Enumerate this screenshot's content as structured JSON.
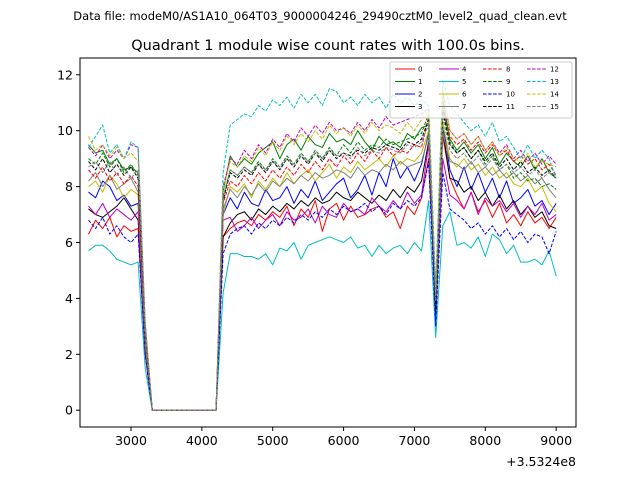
{
  "chart_data": {
    "type": "line",
    "suptitle": "Data file: modeM0/AS1A10_064T03_9000004246_29490cztM0_level2_quad_clean.evt",
    "title": "Quadrant 1 module wise count rates with 100.0s bins.",
    "xlabel": "",
    "ylabel": "",
    "x_offset_label": "+3.5324e8",
    "xlim": [
      2280,
      9280
    ],
    "ylim": [
      -0.6,
      12.6
    ],
    "xticks": [
      3000,
      4000,
      5000,
      6000,
      7000,
      8000,
      9000
    ],
    "xtick_labels": [
      "3000",
      "4000",
      "5000",
      "6000",
      "7000",
      "8000",
      "9000"
    ],
    "yticks": [
      0,
      2,
      4,
      6,
      8,
      10,
      12
    ],
    "ytick_labels": [
      "0",
      "2",
      "4",
      "6",
      "8",
      "10",
      "12"
    ],
    "grid": false,
    "legend_position": "top-right",
    "x": [
      2400,
      2500,
      2600,
      2700,
      2800,
      2900,
      3000,
      3100,
      3200,
      3300,
      3400,
      3500,
      3600,
      3700,
      3800,
      3900,
      4000,
      4100,
      4200,
      4300,
      4400,
      4500,
      4600,
      4700,
      4800,
      4900,
      5000,
      5100,
      5200,
      5300,
      5400,
      5500,
      5600,
      5700,
      5800,
      5900,
      6000,
      6100,
      6200,
      6300,
      6400,
      6500,
      6600,
      6700,
      6800,
      6900,
      7000,
      7100,
      7200,
      7300,
      7400,
      7500,
      7600,
      7700,
      7800,
      7900,
      8000,
      8100,
      8200,
      8300,
      8400,
      8500,
      8600,
      8700,
      8800,
      8900,
      9000
    ],
    "series": [
      {
        "name": "0",
        "color": "#ff0000",
        "dash": false,
        "values": [
          6.3,
          6.8,
          6.5,
          6.9,
          6.2,
          6.6,
          6.4,
          6.5,
          2.0,
          0,
          0,
          0,
          0,
          0,
          0,
          0,
          0,
          0,
          0,
          6.2,
          6.5,
          6.7,
          6.8,
          6.6,
          7.0,
          6.8,
          7.1,
          6.9,
          7.3,
          6.6,
          7.2,
          6.9,
          7.5,
          6.4,
          7.2,
          7.4,
          6.8,
          7.3,
          6.9,
          7.0,
          7.2,
          7.3,
          6.9,
          7.1,
          6.5,
          7.3,
          7.0,
          7.6,
          9.0,
          3.6,
          9.8,
          8.3,
          7.7,
          7.2,
          7.8,
          7.1,
          7.5,
          6.9,
          7.4,
          6.7,
          7.0,
          6.6,
          7.1,
          6.7,
          6.9,
          6.5,
          6.9
        ]
      },
      {
        "name": "1",
        "color": "#008000",
        "dash": false,
        "values": [
          9.5,
          9.2,
          9.3,
          8.8,
          9.0,
          8.6,
          8.7,
          8.5,
          3.0,
          0,
          0,
          0,
          0,
          0,
          0,
          0,
          0,
          0,
          0,
          7.8,
          9.1,
          8.7,
          9.0,
          8.8,
          9.2,
          9.4,
          9.6,
          9.0,
          9.5,
          9.7,
          9.3,
          9.8,
          9.5,
          9.4,
          9.9,
          9.6,
          9.7,
          9.5,
          10.0,
          9.6,
          9.3,
          9.8,
          9.5,
          9.6,
          9.4,
          9.9,
          9.7,
          10.1,
          10.2,
          3.5,
          10.8,
          9.7,
          9.3,
          9.6,
          9.2,
          9.5,
          9.0,
          9.4,
          8.8,
          9.2,
          8.9,
          8.7,
          9.1,
          8.6,
          9.0,
          8.5,
          8.3
        ]
      },
      {
        "name": "2",
        "color": "#0000ff",
        "dash": false,
        "values": [
          7.8,
          7.6,
          8.2,
          8.0,
          7.5,
          7.7,
          7.3,
          7.4,
          2.5,
          0,
          0,
          0,
          0,
          0,
          0,
          0,
          0,
          0,
          0,
          7.0,
          7.6,
          7.2,
          7.8,
          7.4,
          7.3,
          7.9,
          7.5,
          7.6,
          8.0,
          7.4,
          7.9,
          7.6,
          8.2,
          7.5,
          7.8,
          8.1,
          8.3,
          7.6,
          7.9,
          8.4,
          7.7,
          8.5,
          8.0,
          9.0,
          8.3,
          8.7,
          8.2,
          8.8,
          9.9,
          3.2,
          10.3,
          8.6,
          8.0,
          8.7,
          7.9,
          8.5,
          7.8,
          8.3,
          7.6,
          8.2,
          7.4,
          7.6,
          7.9,
          7.3,
          7.5,
          7.0,
          7.4
        ]
      },
      {
        "name": "3",
        "color": "#000000",
        "dash": false,
        "values": [
          7.2,
          7.0,
          6.9,
          7.1,
          7.3,
          7.6,
          7.2,
          6.8,
          2.2,
          0,
          0,
          0,
          0,
          0,
          0,
          0,
          0,
          0,
          0,
          6.2,
          6.7,
          7.0,
          7.1,
          6.8,
          7.2,
          7.0,
          7.3,
          7.1,
          7.4,
          7.2,
          7.5,
          7.3,
          7.6,
          7.4,
          7.5,
          7.8,
          7.6,
          7.5,
          7.8,
          7.6,
          7.4,
          7.7,
          7.5,
          7.9,
          7.6,
          8.0,
          7.8,
          8.2,
          9.6,
          3.8,
          10.0,
          8.3,
          8.2,
          7.8,
          8.0,
          7.5,
          7.8,
          7.3,
          7.7,
          7.2,
          7.5,
          7.0,
          7.3,
          6.9,
          7.1,
          6.6,
          6.5
        ]
      },
      {
        "name": "4",
        "color": "#bf00bf",
        "dash": false,
        "values": [
          7.3,
          7.0,
          7.4,
          6.9,
          7.2,
          7.0,
          6.8,
          7.1,
          2.3,
          0,
          0,
          0,
          0,
          0,
          0,
          0,
          0,
          0,
          0,
          6.8,
          6.9,
          6.4,
          6.6,
          6.9,
          6.5,
          6.8,
          7.0,
          6.6,
          7.1,
          6.8,
          6.9,
          7.2,
          6.7,
          7.3,
          7.0,
          6.9,
          7.4,
          7.1,
          7.2,
          7.0,
          7.6,
          7.3,
          7.1,
          7.5,
          7.2,
          7.8,
          7.4,
          7.7,
          9.5,
          3.4,
          9.0,
          7.7,
          7.5,
          7.2,
          7.8,
          7.0,
          7.6,
          7.3,
          7.5,
          7.1,
          7.4,
          6.9,
          7.3,
          7.0,
          7.4,
          6.8,
          7.0
        ]
      },
      {
        "name": "5",
        "color": "#00bfbf",
        "dash": false,
        "values": [
          5.7,
          5.9,
          5.9,
          5.7,
          5.4,
          5.3,
          5.2,
          5.3,
          1.5,
          0,
          0,
          0,
          0,
          0,
          0,
          0,
          0,
          0,
          0,
          4.2,
          5.6,
          5.6,
          5.5,
          5.5,
          5.4,
          5.6,
          5.2,
          5.8,
          5.7,
          6.0,
          5.4,
          5.9,
          6.0,
          6.1,
          6.2,
          6.1,
          6.0,
          6.2,
          5.8,
          5.9,
          5.5,
          5.9,
          5.6,
          5.8,
          5.9,
          5.6,
          6.0,
          5.7,
          7.5,
          2.6,
          6.6,
          7.1,
          5.9,
          6.0,
          5.8,
          6.2,
          5.5,
          6.3,
          6.1,
          5.6,
          5.9,
          5.3,
          5.3,
          5.4,
          5.2,
          5.7,
          4.8
        ]
      },
      {
        "name": "6",
        "color": "#bfbf00",
        "dash": false,
        "values": [
          8.0,
          8.2,
          7.8,
          8.4,
          8.1,
          7.6,
          7.9,
          7.7,
          2.4,
          0,
          0,
          0,
          0,
          0,
          0,
          0,
          0,
          0,
          0,
          7.0,
          8.0,
          7.8,
          8.1,
          7.6,
          8.2,
          7.9,
          8.3,
          8.0,
          8.5,
          8.1,
          8.4,
          8.6,
          8.2,
          8.5,
          8.8,
          8.3,
          8.7,
          8.5,
          8.9,
          8.6,
          8.8,
          9.0,
          8.7,
          9.1,
          8.8,
          9.0,
          8.9,
          9.2,
          10.0,
          3.9,
          10.3,
          9.0,
          8.7,
          9.0,
          8.6,
          8.8,
          8.4,
          8.7,
          8.3,
          8.5,
          8.1,
          8.0,
          8.3,
          7.8,
          8.0,
          7.4,
          7.1
        ]
      },
      {
        "name": "7",
        "color": "#808080",
        "dash": false,
        "values": [
          8.2,
          8.5,
          8.0,
          8.4,
          7.9,
          8.1,
          8.3,
          7.8,
          2.6,
          0,
          0,
          0,
          0,
          0,
          0,
          0,
          0,
          0,
          0,
          7.2,
          7.9,
          7.6,
          8.0,
          7.7,
          8.1,
          7.8,
          8.2,
          8.0,
          8.3,
          8.1,
          8.4,
          8.2,
          8.5,
          8.3,
          8.4,
          8.6,
          8.5,
          8.3,
          8.7,
          8.4,
          8.6,
          8.5,
          8.8,
          8.6,
          8.9,
          8.7,
          8.8,
          8.9,
          9.8,
          3.7,
          9.9,
          8.9,
          8.8,
          8.6,
          8.9,
          8.5,
          8.7,
          8.4,
          8.6,
          8.3,
          8.5,
          8.2,
          8.4,
          8.1,
          8.3,
          7.9,
          7.6
        ]
      },
      {
        "name": "8",
        "color": "#ff0000",
        "dash": true,
        "values": [
          8.6,
          8.3,
          8.7,
          8.2,
          8.5,
          8.1,
          8.4,
          8.0,
          2.7,
          0,
          0,
          0,
          0,
          0,
          0,
          0,
          0,
          0,
          0,
          7.4,
          8.2,
          8.0,
          8.4,
          8.1,
          8.5,
          8.2,
          8.6,
          8.3,
          8.7,
          8.4,
          8.8,
          8.5,
          8.9,
          8.6,
          9.0,
          8.7,
          9.1,
          8.8,
          9.2,
          8.9,
          9.3,
          9.0,
          9.4,
          9.1,
          9.3,
          9.2,
          9.5,
          9.4,
          10.5,
          4.0,
          11.0,
          9.8,
          9.5,
          9.7,
          9.3,
          9.6,
          9.2,
          9.5,
          9.1,
          9.3,
          8.9,
          9.1,
          8.8,
          9.0,
          8.6,
          8.8,
          8.4
        ]
      },
      {
        "name": "9",
        "color": "#008000",
        "dash": true,
        "values": [
          9.0,
          8.8,
          9.2,
          8.7,
          9.0,
          8.5,
          8.8,
          8.4,
          2.9,
          0,
          0,
          0,
          0,
          0,
          0,
          0,
          0,
          0,
          0,
          7.6,
          8.6,
          8.4,
          8.7,
          8.5,
          8.9,
          8.6,
          9.0,
          8.7,
          9.1,
          8.8,
          9.2,
          8.9,
          9.3,
          9.0,
          9.4,
          9.1,
          9.5,
          9.2,
          9.6,
          9.3,
          9.5,
          9.4,
          9.7,
          9.5,
          9.6,
          9.7,
          9.8,
          9.9,
          10.6,
          3.6,
          11.2,
          9.6,
          9.2,
          9.4,
          9.0,
          9.3,
          8.8,
          9.1,
          8.6,
          8.8,
          8.3,
          8.5,
          8.2,
          8.3,
          8.0,
          8.1,
          7.9
        ]
      },
      {
        "name": "10",
        "color": "#0000ff",
        "dash": true,
        "values": [
          6.8,
          6.5,
          6.9,
          6.3,
          6.6,
          6.2,
          6.0,
          6.3,
          2.0,
          0,
          0,
          0,
          0,
          0,
          0,
          0,
          0,
          0,
          0,
          5.6,
          6.3,
          6.5,
          6.6,
          6.3,
          6.7,
          6.5,
          6.8,
          6.6,
          6.9,
          6.7,
          7.0,
          6.8,
          7.1,
          6.9,
          7.2,
          7.0,
          7.3,
          7.1,
          7.2,
          7.4,
          7.1,
          7.3,
          7.0,
          7.4,
          7.2,
          7.5,
          7.3,
          7.6,
          8.9,
          3.0,
          8.5,
          7.2,
          7.0,
          6.8,
          6.5,
          6.7,
          6.3,
          6.6,
          6.2,
          6.5,
          6.1,
          6.4,
          6.0,
          6.3,
          6.2,
          5.6,
          6.4
        ]
      },
      {
        "name": "11",
        "color": "#000000",
        "dash": true,
        "values": [
          8.9,
          8.6,
          9.0,
          8.5,
          8.8,
          8.4,
          8.7,
          8.3,
          2.8,
          0,
          0,
          0,
          0,
          0,
          0,
          0,
          0,
          0,
          0,
          7.5,
          8.5,
          8.3,
          8.6,
          8.4,
          8.8,
          8.5,
          8.9,
          8.6,
          9.0,
          8.7,
          9.1,
          8.8,
          9.2,
          8.9,
          9.3,
          9.0,
          9.2,
          9.1,
          9.3,
          9.2,
          9.4,
          9.3,
          9.5,
          9.4,
          9.3,
          9.6,
          9.5,
          9.7,
          10.4,
          3.5,
          10.7,
          9.5,
          9.2,
          9.4,
          9.0,
          9.3,
          8.9,
          9.2,
          8.7,
          9.0,
          8.6,
          8.9,
          8.5,
          8.7,
          8.4,
          8.6,
          8.3
        ]
      },
      {
        "name": "12",
        "color": "#bf00bf",
        "dash": true,
        "values": [
          9.4,
          9.1,
          9.5,
          9.0,
          9.3,
          9.0,
          9.5,
          9.4,
          3.1,
          0,
          0,
          0,
          0,
          0,
          0,
          0,
          0,
          0,
          0,
          8.0,
          9.0,
          8.8,
          9.3,
          9.0,
          9.5,
          9.2,
          9.7,
          9.4,
          9.9,
          9.6,
          10.1,
          9.8,
          10.2,
          9.9,
          10.3,
          10.0,
          10.1,
          9.9,
          10.3,
          10.0,
          10.4,
          10.1,
          10.5,
          10.2,
          10.3,
          10.4,
          10.5,
          10.6,
          10.8,
          4.3,
          11.4,
          10.0,
          9.7,
          9.9,
          9.5,
          9.8,
          9.3,
          9.6,
          9.2,
          9.5,
          9.0,
          9.3,
          8.9,
          9.2,
          8.8,
          9.1,
          8.8
        ]
      },
      {
        "name": "13",
        "color": "#00bfbf",
        "dash": true,
        "values": [
          9.4,
          9.8,
          10.2,
          9.2,
          9.5,
          9.0,
          9.6,
          9.4,
          3.2,
          0,
          0,
          0,
          0,
          0,
          0,
          0,
          0,
          0,
          0,
          8.5,
          10.2,
          10.4,
          10.6,
          10.5,
          10.9,
          10.7,
          11.1,
          10.9,
          11.2,
          10.8,
          11.3,
          11.0,
          11.3,
          10.9,
          11.5,
          11.4,
          11.0,
          11.2,
          10.9,
          11.3,
          11.0,
          11.2,
          10.8,
          11.3,
          11.0,
          11.2,
          10.9,
          11.1,
          10.9,
          4.4,
          11.8,
          10.9,
          10.6,
          10.3,
          10.0,
          10.2,
          9.8,
          10.3,
          9.6,
          9.8,
          9.4,
          9.0,
          9.5,
          9.0,
          9.3,
          9.0,
          8.3
        ]
      },
      {
        "name": "14",
        "color": "#bfbf00",
        "dash": true,
        "values": [
          9.8,
          9.3,
          9.5,
          9.1,
          9.4,
          9.0,
          9.2,
          8.9,
          3.0,
          0,
          0,
          0,
          0,
          0,
          0,
          0,
          0,
          0,
          0,
          7.9,
          8.9,
          8.7,
          9.1,
          8.9,
          9.4,
          9.1,
          9.6,
          9.3,
          9.8,
          9.5,
          9.9,
          9.6,
          10.0,
          9.7,
          10.2,
          9.9,
          10.1,
          9.8,
          10.2,
          9.9,
          10.3,
          10.0,
          10.2,
          10.1,
          9.9,
          10.3,
          10.0,
          10.4,
          10.7,
          4.1,
          11.5,
          10.0,
          9.7,
          9.9,
          9.5,
          9.8,
          9.3,
          9.6,
          9.1,
          9.4,
          9.0,
          8.9,
          9.2,
          8.7,
          8.9,
          8.8,
          8.7
        ]
      },
      {
        "name": "15",
        "color": "#808080",
        "dash": true,
        "values": [
          8.7,
          8.9,
          8.5,
          8.9,
          8.4,
          8.7,
          8.3,
          8.6,
          2.8,
          0,
          0,
          0,
          0,
          0,
          0,
          0,
          0,
          0,
          0,
          7.6,
          8.6,
          8.4,
          8.7,
          8.5,
          8.8,
          8.6,
          8.9,
          8.7,
          9.0,
          8.8,
          9.1,
          8.9,
          9.2,
          9.0,
          9.3,
          9.1,
          9.2,
          9.0,
          9.4,
          9.1,
          9.3,
          9.2,
          9.4,
          9.3,
          9.2,
          9.5,
          9.4,
          9.6,
          10.2,
          3.9,
          10.5,
          9.3,
          9.0,
          9.2,
          8.8,
          9.1,
          8.7,
          9.0,
          8.6,
          8.8,
          8.5,
          8.7,
          8.4,
          8.6,
          8.3,
          8.5,
          8.4
        ]
      }
    ]
  }
}
